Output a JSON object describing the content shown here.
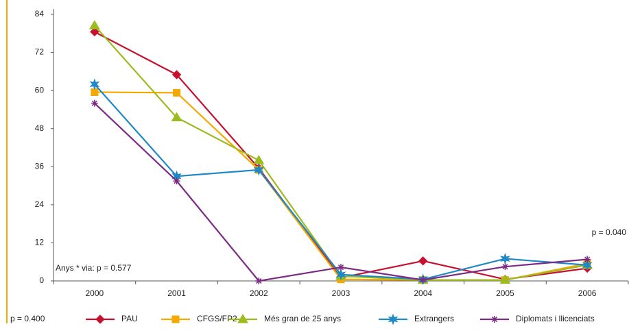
{
  "chart_data": {
    "type": "line",
    "categories": [
      "2000",
      "2001",
      "2002",
      "2003",
      "2004",
      "2005",
      "2006"
    ],
    "series": [
      {
        "name": "PAU",
        "color": "#c8102e",
        "marker": "diamond",
        "values": [
          78.5,
          65,
          35.5,
          1,
          6.3,
          0.5,
          4
        ]
      },
      {
        "name": "CFGS/FP2",
        "color": "#f5a800",
        "marker": "square",
        "values": [
          59.5,
          59.3,
          35,
          0.5,
          0.3,
          0.3,
          5.5
        ]
      },
      {
        "name": "Més gran de 25 anys",
        "color": "#9bbb1f",
        "marker": "triangle",
        "values": [
          80.5,
          51.5,
          38,
          1.5,
          0.3,
          0.3,
          5
        ]
      },
      {
        "name": "Extrangers",
        "color": "#1e88c8",
        "marker": "star",
        "values": [
          62,
          33,
          35,
          2,
          0.5,
          7,
          5
        ]
      },
      {
        "name": "Diplomats i llicenciats",
        "color": "#7b2b83",
        "marker": "asterisk",
        "values": [
          56,
          31.5,
          0,
          4.3,
          0.3,
          4.5,
          6.8
        ]
      }
    ],
    "ylim": [
      0,
      84
    ],
    "yticks": [
      0,
      12,
      24,
      36,
      48,
      60,
      72,
      84
    ],
    "grid": false,
    "annotations": [
      "p = 0.040",
      "Anys * via: p = 0.577",
      "p = 0.400"
    ],
    "legend": "bottom"
  }
}
